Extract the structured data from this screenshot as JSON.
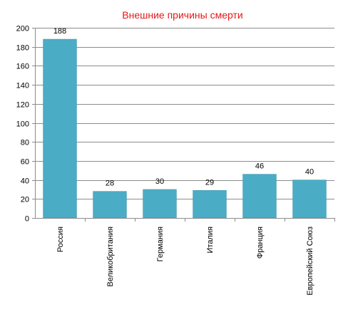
{
  "chart_data": {
    "type": "bar",
    "title": "Внешние причины смерти",
    "categories": [
      "Россия",
      "Великобритания",
      "Германия",
      "Италия",
      "Франция",
      "Европейский Союз"
    ],
    "values": [
      188,
      28,
      30,
      29,
      46,
      40
    ],
    "data_labels": [
      "188",
      "28",
      "30",
      "29",
      "46",
      "40"
    ],
    "ylim": [
      0,
      200
    ],
    "yticks": [
      "0",
      "20",
      "40",
      "60",
      "80",
      "100",
      "120",
      "140",
      "160",
      "180",
      "200"
    ],
    "grid": true,
    "legend": "none",
    "xlabel": "",
    "ylabel": ""
  },
  "colors": {
    "title": "#e31919",
    "bar": "#4bacc6",
    "bar_edge": "#3d94ab",
    "grid": "#8c8c8c",
    "axis": "#8c8c8c"
  }
}
